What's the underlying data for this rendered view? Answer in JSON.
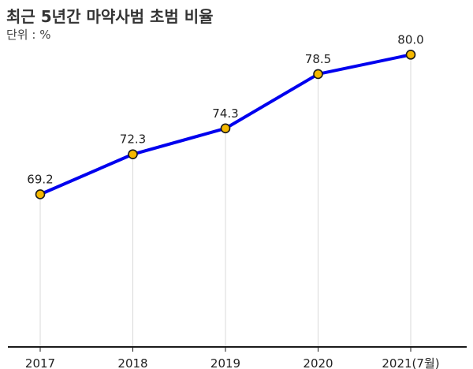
{
  "header": {
    "title": "최근 5년간 마약사범 초범 비율",
    "unit_label": "단위 : %"
  },
  "colors": {
    "line": "#0000ee",
    "marker_fill": "#f5b800",
    "marker_stroke": "#1a1a1a",
    "axis": "#1a1a1a",
    "guide": "#d9d9d9",
    "text": "#222222"
  },
  "chart_data": {
    "type": "line",
    "title": "최근 5년간 마약사범 초범 비율",
    "unit": "단위 : %",
    "categories": [
      "2017",
      "2018",
      "2019",
      "2020",
      "2021(7월)"
    ],
    "series": [
      {
        "values": [
          69.2,
          72.3,
          74.3,
          78.5,
          80.0
        ],
        "labels": [
          "69.2",
          "72.3",
          "74.3",
          "78.5",
          "80.0"
        ]
      }
    ],
    "xlabel": "",
    "ylabel": "",
    "ylim": [
      57.4,
      82.4
    ],
    "grid": false,
    "vertical_guides": true,
    "legend": "none"
  }
}
